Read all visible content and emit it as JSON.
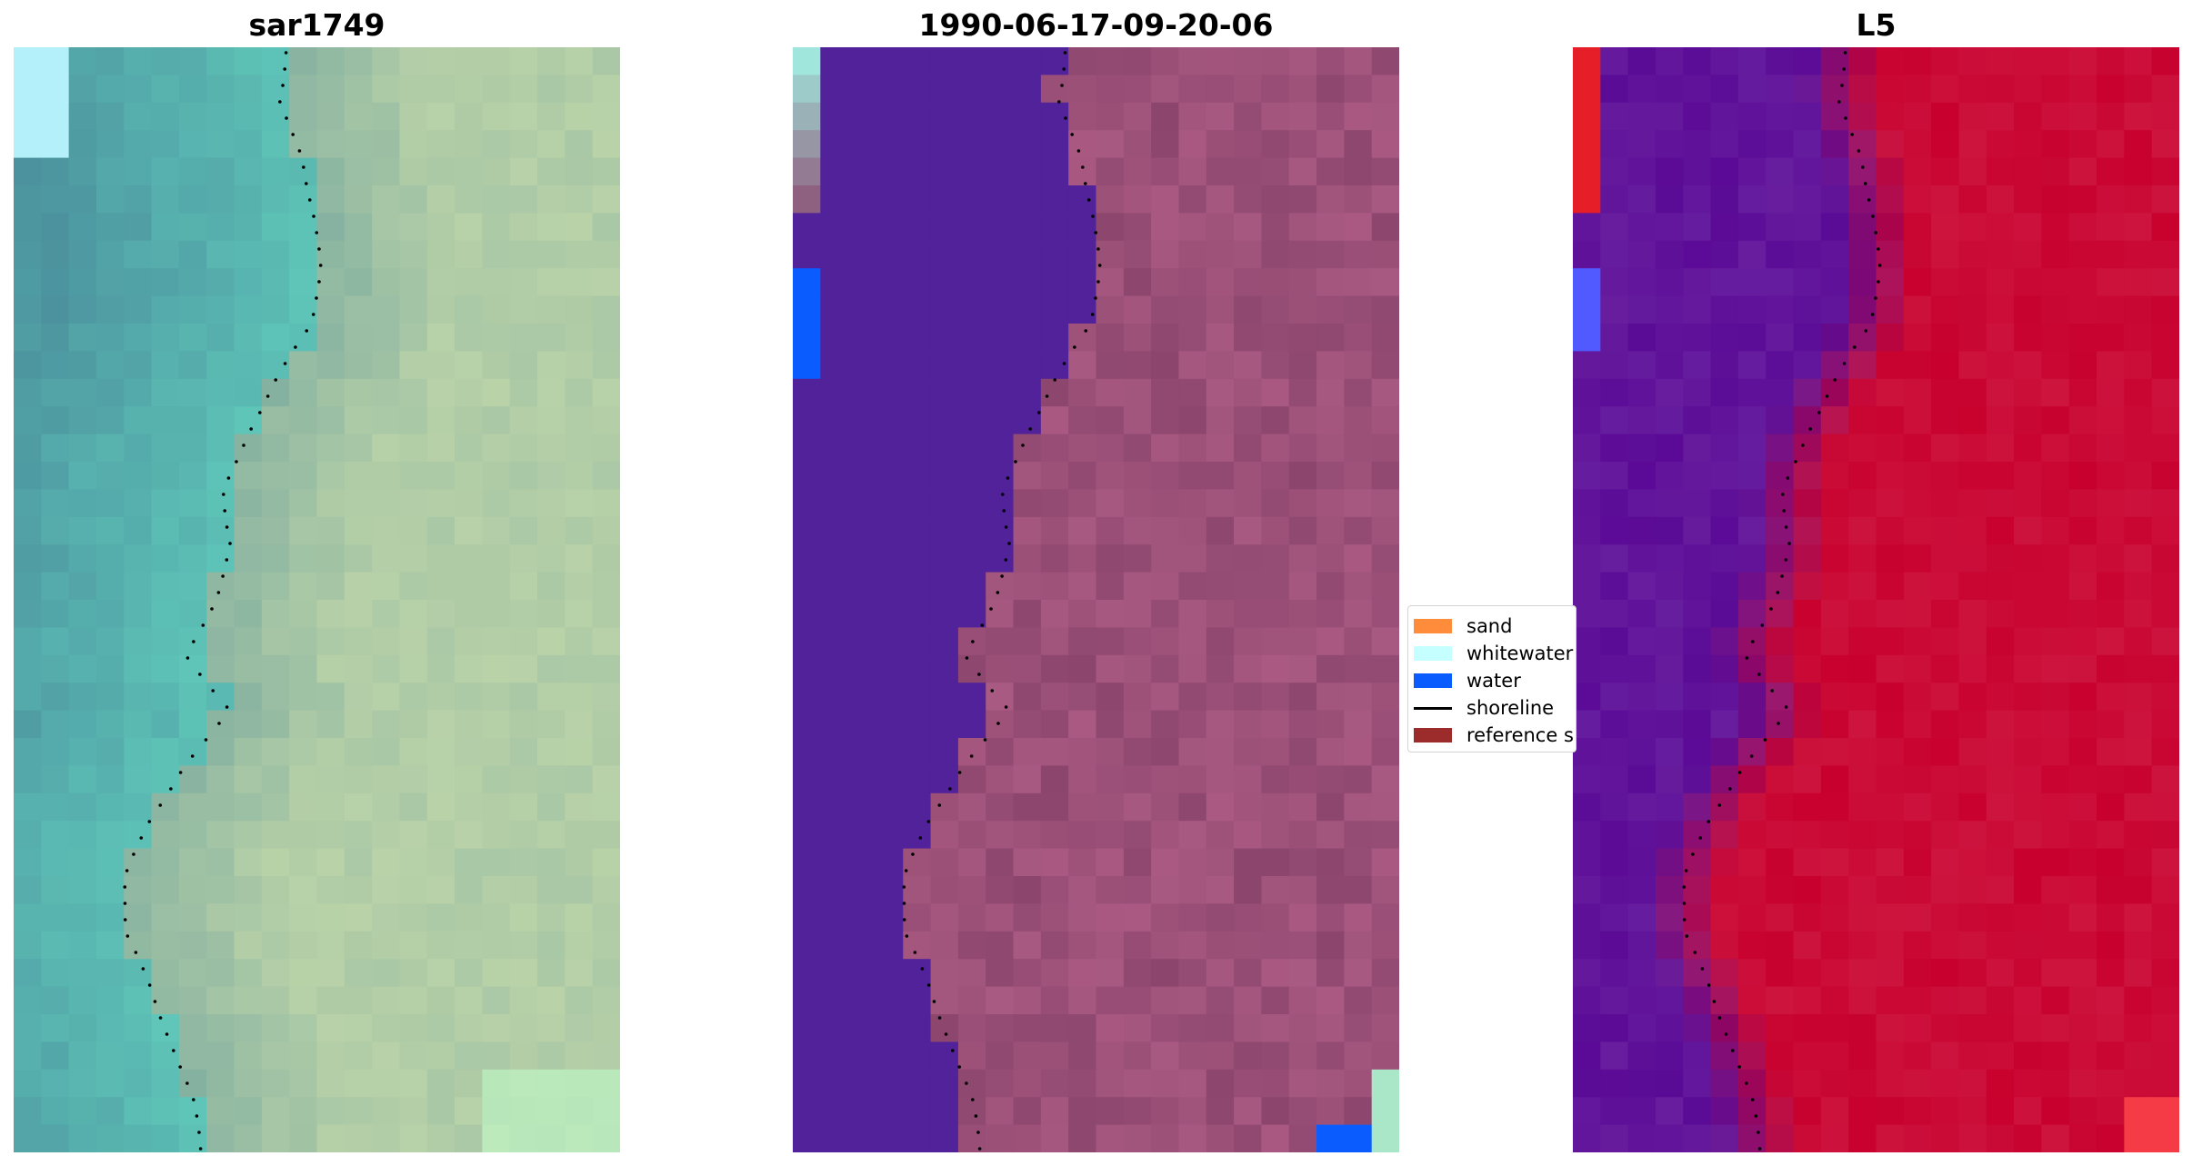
{
  "panels": [
    {
      "title": "sar1749",
      "kind": "rgb"
    },
    {
      "title": "1990-06-17-09-20-06",
      "kind": "classified"
    },
    {
      "title": "L5",
      "kind": "probability"
    }
  ],
  "legend": {
    "items": [
      {
        "label": "sand",
        "color": "#ff8c3a",
        "type": "patch"
      },
      {
        "label": "whitewater",
        "color": "#c6ffff",
        "type": "patch"
      },
      {
        "label": "water",
        "color": "#0a5cff",
        "type": "patch"
      },
      {
        "label": "shoreline",
        "color": "#000000",
        "type": "line"
      },
      {
        "label": "reference s",
        "color": "#9c2b2b",
        "type": "patch"
      }
    ]
  },
  "colors": {
    "water_class": "#51229a",
    "land_overlay": "#a0466e",
    "sea_rgb": "#5fc7b9",
    "land_rgb": "#b9d2a8",
    "prob_water": "#5b0d9c",
    "prob_land": "#c8002c"
  }
}
